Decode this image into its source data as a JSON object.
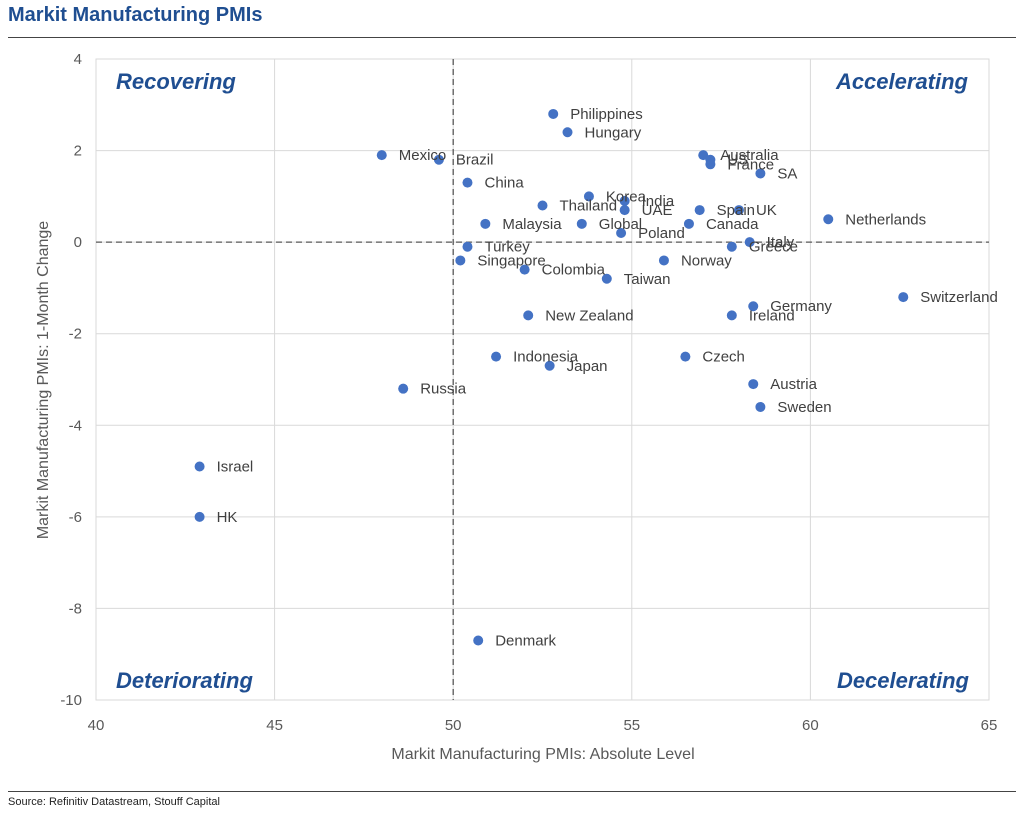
{
  "title": "Markit Manufacturing PMIs",
  "source": "Source: Refinitiv Datastream, Stouff Capital",
  "chart_data": {
    "type": "scatter",
    "xlabel": "Markit Manufacturing PMIs: Absolute Level",
    "ylabel": "Markit Manufacturing PMIs: 1-Month Change",
    "xlim": [
      40,
      65
    ],
    "ylim": [
      -10,
      4
    ],
    "xticks": [
      40,
      45,
      50,
      55,
      60,
      65
    ],
    "yticks": [
      -10,
      -8,
      -6,
      -4,
      -2,
      0,
      2,
      4
    ],
    "grid": true,
    "reference_lines": {
      "x": 50,
      "y": 0
    },
    "marker_color": "#4472c4",
    "quadrant_labels": {
      "top_left": "Recovering",
      "top_right": "Accelerating",
      "bottom_left": "Deteriorating",
      "bottom_right": "Decelerating"
    },
    "points": [
      {
        "label": "Philippines",
        "x": 52.8,
        "y": 2.8
      },
      {
        "label": "Hungary",
        "x": 53.2,
        "y": 2.4
      },
      {
        "label": "Mexico",
        "x": 48.0,
        "y": 1.9
      },
      {
        "label": "Brazil",
        "x": 49.6,
        "y": 1.8
      },
      {
        "label": "China",
        "x": 50.4,
        "y": 1.3
      },
      {
        "label": "Australia",
        "x": 57.0,
        "y": 1.9
      },
      {
        "label": "US",
        "x": 57.2,
        "y": 1.8
      },
      {
        "label": "France",
        "x": 57.2,
        "y": 1.7
      },
      {
        "label": "SA",
        "x": 58.6,
        "y": 1.5
      },
      {
        "label": "Korea",
        "x": 53.8,
        "y": 1.0
      },
      {
        "label": "India",
        "x": 54.8,
        "y": 0.9
      },
      {
        "label": "Thailand",
        "x": 52.5,
        "y": 0.8
      },
      {
        "label": "UAE",
        "x": 54.8,
        "y": 0.7
      },
      {
        "label": "Spain",
        "x": 56.9,
        "y": 0.7
      },
      {
        "label": "UK",
        "x": 58.0,
        "y": 0.7
      },
      {
        "label": "Malaysia",
        "x": 50.9,
        "y": 0.4
      },
      {
        "label": "Global",
        "x": 53.6,
        "y": 0.4
      },
      {
        "label": "Canada",
        "x": 56.6,
        "y": 0.4
      },
      {
        "label": "Poland",
        "x": 54.7,
        "y": 0.2
      },
      {
        "label": "Netherlands",
        "x": 60.5,
        "y": 0.5
      },
      {
        "label": "Italy",
        "x": 58.3,
        "y": 0.0
      },
      {
        "label": "Greece",
        "x": 57.8,
        "y": -0.1
      },
      {
        "label": "Turkey",
        "x": 50.4,
        "y": -0.1
      },
      {
        "label": "Singapore",
        "x": 50.2,
        "y": -0.4
      },
      {
        "label": "Colombia",
        "x": 52.0,
        "y": -0.6
      },
      {
        "label": "Norway",
        "x": 55.9,
        "y": -0.4
      },
      {
        "label": "Taiwan",
        "x": 54.3,
        "y": -0.8
      },
      {
        "label": "Switzerland",
        "x": 62.6,
        "y": -1.2
      },
      {
        "label": "Germany",
        "x": 58.4,
        "y": -1.4
      },
      {
        "label": "Ireland",
        "x": 57.8,
        "y": -1.6
      },
      {
        "label": "New Zealand",
        "x": 52.1,
        "y": -1.6
      },
      {
        "label": "Indonesia",
        "x": 51.2,
        "y": -2.5
      },
      {
        "label": "Japan",
        "x": 52.7,
        "y": -2.7
      },
      {
        "label": "Czech",
        "x": 56.5,
        "y": -2.5
      },
      {
        "label": "Russia",
        "x": 48.6,
        "y": -3.2
      },
      {
        "label": "Austria",
        "x": 58.4,
        "y": -3.1
      },
      {
        "label": "Sweden",
        "x": 58.6,
        "y": -3.6
      },
      {
        "label": "Israel",
        "x": 42.9,
        "y": -4.9
      },
      {
        "label": "HK",
        "x": 42.9,
        "y": -6.0
      },
      {
        "label": "Denmark",
        "x": 50.7,
        "y": -8.7
      }
    ]
  }
}
